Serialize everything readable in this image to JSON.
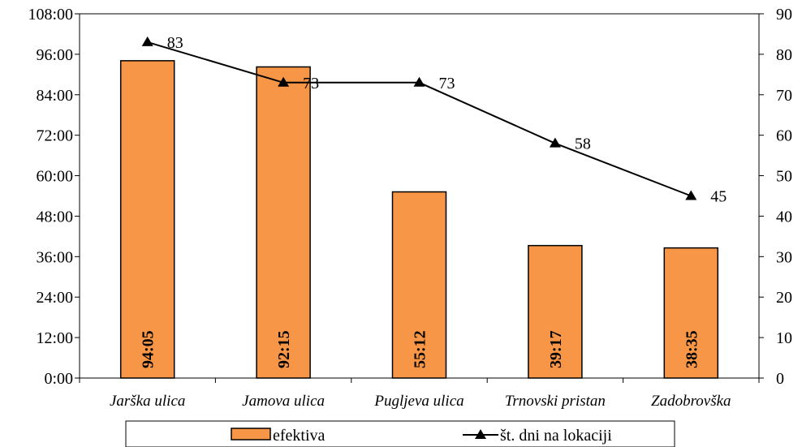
{
  "chart_data": {
    "type": "bar+line",
    "categories": [
      "Jarška ulica",
      "Jamova ulica",
      "Pugljeva ulica",
      "Trnovski pristan",
      "Zadobrovška"
    ],
    "series": [
      {
        "name": "efektiva",
        "type": "bar",
        "axis": "left",
        "color": "#F79646",
        "values_hours": [
          94.0833,
          92.25,
          55.2,
          39.2833,
          38.5833
        ],
        "labels": [
          "94:05",
          "92:15",
          "55:12",
          "39:17",
          "38:35"
        ]
      },
      {
        "name": "št. dni na lokaciji",
        "type": "line",
        "axis": "right",
        "color": "#000000",
        "marker": "triangle",
        "values": [
          83,
          73,
          73,
          58,
          45
        ],
        "labels": [
          "83",
          "73",
          "73",
          "58",
          "45"
        ]
      }
    ],
    "y_left": {
      "ylim": [
        0,
        108
      ],
      "ticks": [
        0,
        12,
        24,
        36,
        48,
        60,
        72,
        84,
        96,
        108
      ],
      "tick_labels": [
        "0:00",
        "12:00",
        "24:00",
        "36:00",
        "48:00",
        "60:00",
        "72:00",
        "84:00",
        "96:00",
        "108:00"
      ]
    },
    "y_right": {
      "ylim": [
        0,
        90
      ],
      "ticks": [
        0,
        10,
        20,
        30,
        40,
        50,
        60,
        70,
        80,
        90
      ],
      "tick_labels": [
        "0",
        "10",
        "20",
        "30",
        "40",
        "50",
        "60",
        "70",
        "80",
        "90"
      ]
    },
    "legend": {
      "placement": "bottom",
      "entries": [
        "efektiva",
        "št. dni na lokaciji"
      ]
    },
    "grid": false
  }
}
